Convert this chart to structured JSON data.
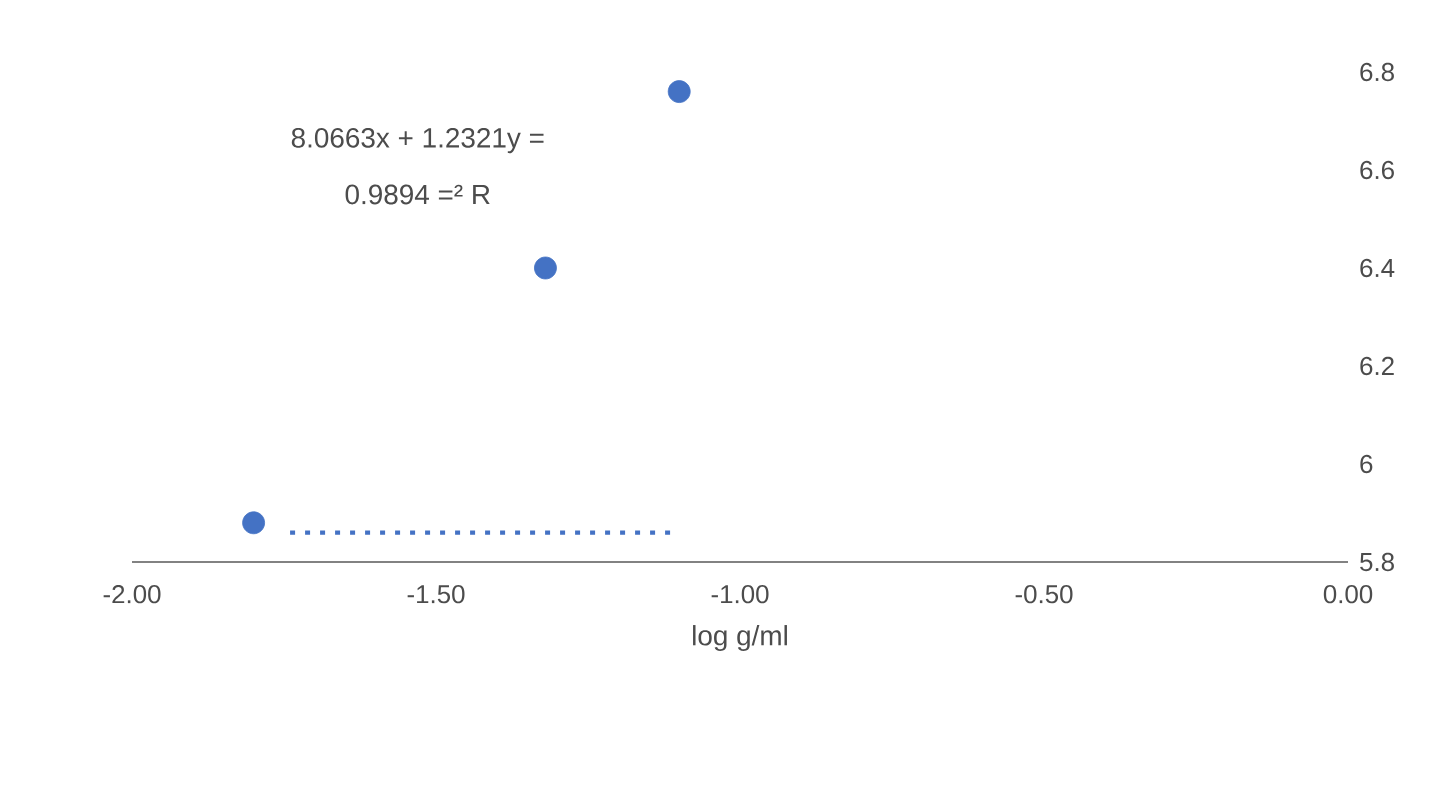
{
  "chart_data": {
    "type": "scatter",
    "xlabel": "log g/ml",
    "annotations": [
      "8.0663x + 1.2321y =",
      "0.9894 =² R"
    ],
    "series": [
      {
        "color": "#4472c4",
        "x": [
          -1.8,
          -1.32,
          -1.1
        ],
        "values": [
          5.88,
          6.4,
          6.76
        ]
      },
      {
        "type": "line",
        "color": "#4472c4",
        "line_style": "dotted",
        "x": [
          -1.74,
          -1.115
        ],
        "values": [
          5.86,
          5.86
        ]
      }
    ],
    "xlim": [
      -2,
      0
    ],
    "ylim": [
      5.8,
      6.8
    ],
    "xticks": [
      {
        "value": -2,
        "label": "-2.00"
      },
      {
        "value": -1.5,
        "label": "-1.50"
      },
      {
        "value": -1,
        "label": "-1.00"
      },
      {
        "value": -0.5,
        "label": "-0.50"
      },
      {
        "value": 0,
        "label": "0.00"
      }
    ],
    "yticks": [
      5.8,
      6,
      6.2,
      6.4,
      6.6,
      6.8
    ]
  }
}
